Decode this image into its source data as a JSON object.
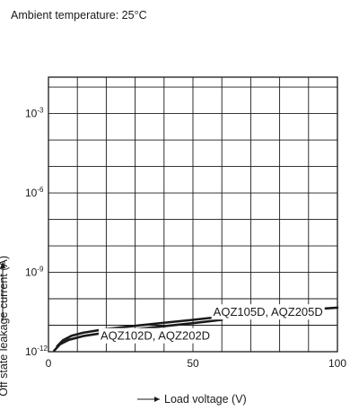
{
  "note": "Ambient temperature: 25°C",
  "chart_data": {
    "type": "line",
    "title": "",
    "xlabel": "Load voltage (V)",
    "ylabel": "Off state leakage current (A)",
    "xlim": [
      0,
      100
    ],
    "ylim": [
      1e-12,
      0.001
    ],
    "yscale": "log",
    "x_ticks": [
      0,
      50,
      100
    ],
    "x_tick_labels": [
      "0",
      "50",
      "100"
    ],
    "y_ticks": [
      1e-12,
      1e-09,
      1e-06,
      0.001
    ],
    "y_tick_labels": [
      {
        "base": "10",
        "exp": "-12"
      },
      {
        "base": "10",
        "exp": "-9"
      },
      {
        "base": "10",
        "exp": "-6"
      },
      {
        "base": "10",
        "exp": "-3"
      }
    ],
    "grid": true,
    "series": [
      {
        "name": "AQZ105D, AQZ205D",
        "x": [
          3,
          5,
          8,
          12,
          20,
          30,
          40,
          50,
          60,
          70,
          80,
          90,
          100
        ],
        "y": [
          1.6e-12,
          2.7e-12,
          4e-12,
          5.2e-12,
          7.2e-12,
          9.5e-12,
          1.24e-11,
          1.6e-11,
          2.1e-11,
          2.7e-11,
          3.3e-11,
          3.9e-11,
          4.6e-11
        ]
      },
      {
        "name": "AQZ102D, AQZ202D",
        "x": [
          2,
          4,
          7,
          12,
          20,
          30,
          40,
          50,
          60
        ],
        "y": [
          1.1e-12,
          1.9e-12,
          2.8e-12,
          3.9e-12,
          5.3e-12,
          7e-12,
          9.2e-12,
          1.2e-11,
          1.6e-11
        ]
      }
    ]
  }
}
